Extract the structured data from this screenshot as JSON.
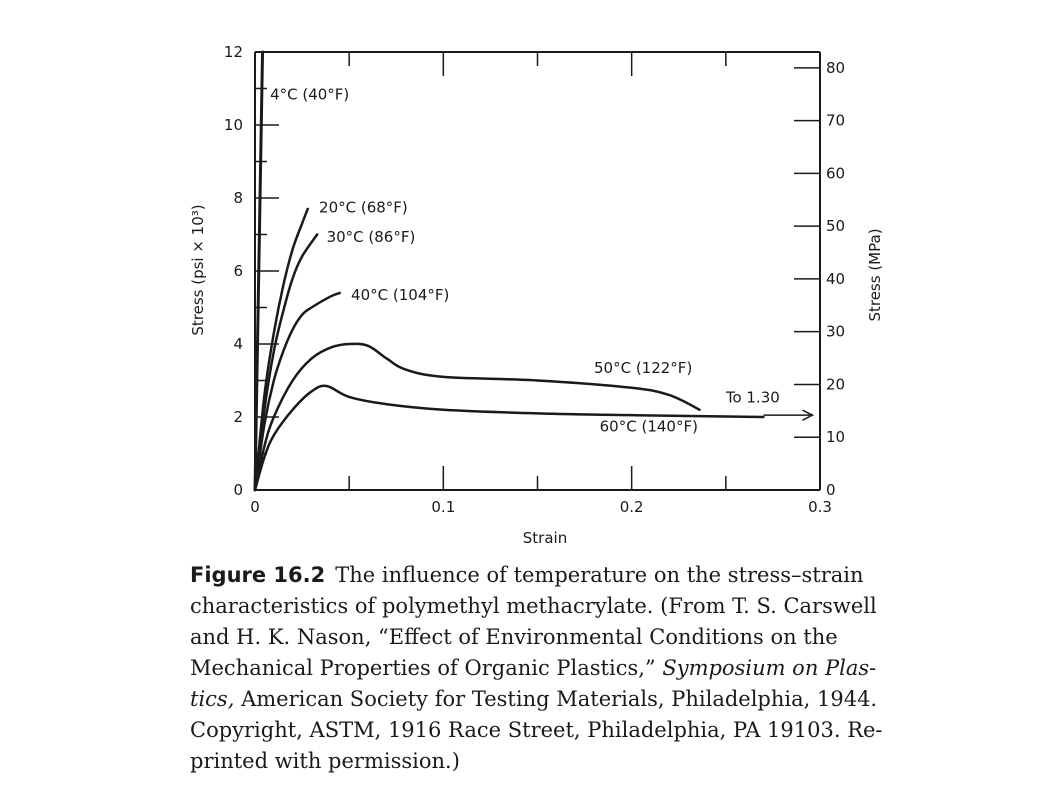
{
  "chart_data": {
    "type": "line",
    "xlabel": "Strain",
    "ylabel": "Stress (psi × 10³)",
    "ylabel_right": "Stress (MPa)",
    "xlim": [
      0,
      0.3
    ],
    "ylim": [
      0,
      12
    ],
    "ylim_right": [
      0,
      83
    ],
    "x_ticks": [
      "0",
      "0.1",
      "0.2",
      "0.3"
    ],
    "y_ticks": [
      "0",
      "2",
      "4",
      "6",
      "8",
      "10",
      "12"
    ],
    "y_ticks_right": [
      "0",
      "10",
      "20",
      "30",
      "40",
      "50",
      "60",
      "70",
      "80"
    ],
    "grid": false,
    "series": [
      {
        "name": "4°C (40°F)",
        "x": [
          0,
          0.001,
          0.002,
          0.003,
          0.004
        ],
        "y": [
          0,
          3,
          6,
          9,
          12
        ]
      },
      {
        "name": "20°C (68°F)",
        "x": [
          0,
          0.005,
          0.01,
          0.015,
          0.02,
          0.025,
          0.028
        ],
        "y": [
          0,
          2.6,
          4.3,
          5.6,
          6.6,
          7.3,
          7.7
        ]
      },
      {
        "name": "30°C (86°F)",
        "x": [
          0,
          0.005,
          0.01,
          0.015,
          0.02,
          0.025,
          0.033
        ],
        "y": [
          0,
          2.2,
          3.8,
          4.9,
          5.8,
          6.4,
          7.0
        ]
      },
      {
        "name": "40°C (104°F)",
        "x": [
          0,
          0.005,
          0.01,
          0.015,
          0.02,
          0.025,
          0.03,
          0.04,
          0.045
        ],
        "y": [
          0,
          1.8,
          3.0,
          3.8,
          4.4,
          4.8,
          5.0,
          5.3,
          5.4
        ]
      },
      {
        "name": "50°C (122°F)",
        "x": [
          0,
          0.005,
          0.01,
          0.02,
          0.03,
          0.04,
          0.05,
          0.06,
          0.07,
          0.08,
          0.1,
          0.15,
          0.2,
          0.22,
          0.236
        ],
        "y": [
          0,
          1.2,
          2.0,
          3.0,
          3.6,
          3.9,
          4.0,
          3.95,
          3.6,
          3.3,
          3.1,
          3.0,
          2.8,
          2.6,
          2.2
        ]
      },
      {
        "name": "60°C (140°F)",
        "x": [
          0,
          0.005,
          0.01,
          0.02,
          0.03,
          0.038,
          0.05,
          0.07,
          0.1,
          0.15,
          0.2,
          0.27
        ],
        "y": [
          0,
          0.9,
          1.5,
          2.2,
          2.7,
          2.85,
          2.55,
          2.35,
          2.2,
          2.1,
          2.05,
          2.0
        ]
      }
    ],
    "annotations": [
      {
        "text": "To 1.30",
        "x": 0.28,
        "y": 2.0
      }
    ]
  },
  "caption": {
    "fig_num": "Figure 16.2",
    "line1": "The influence of temperature on the stress–strain",
    "line2": "characteristics of polymethyl methacrylate. (From T. S. Carswell",
    "line3": "and H. K. Nason, “Effect of Environmental Conditions on the",
    "line4a": "Mechanical Properties of Organic Plastics,”",
    "line4b": "Symposium on Plas-",
    "line5a": "tics,",
    "line5b": "American Society for Testing Materials, Philadelphia, 1944.",
    "line6": "Copyright, ASTM, 1916 Race Street, Philadelphia, PA 19103. Re-",
    "line7": "printed with permission.)"
  }
}
